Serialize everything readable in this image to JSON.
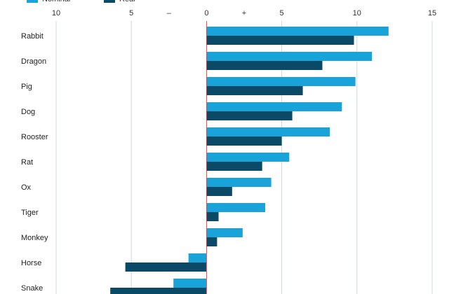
{
  "colors": {
    "nominal": "#1aa3d8",
    "real": "#0b4a66",
    "zero_line": "#e04b4b",
    "grid": "#cfd8de",
    "text": "#222222"
  },
  "chart_data": {
    "type": "bar",
    "orientation": "horizontal",
    "title": "",
    "xlabel": "",
    "ylabel": "",
    "xlim": [
      -10,
      15
    ],
    "x_ticks": [
      -10,
      -5,
      0,
      5,
      10,
      15
    ],
    "x_tick_labels": [
      "10",
      "5",
      "0",
      "5",
      "10",
      "15"
    ],
    "sign_markers": [
      "–",
      "+"
    ],
    "grid": true,
    "legend_position": "top-left",
    "categories": [
      "Rabbit",
      "Dragon",
      "Pig",
      "Dog",
      "Rooster",
      "Rat",
      "Ox",
      "Tiger",
      "Monkey",
      "Horse",
      "Snake"
    ],
    "series": [
      {
        "name": "Nominal",
        "values": [
          12.1,
          11.0,
          9.9,
          9.0,
          8.2,
          5.5,
          4.3,
          3.9,
          2.4,
          -1.2,
          -2.2
        ]
      },
      {
        "name": "Real",
        "values": [
          9.8,
          7.7,
          6.4,
          5.7,
          5.0,
          3.7,
          1.7,
          0.8,
          0.7,
          -5.4,
          -6.4
        ]
      }
    ]
  }
}
